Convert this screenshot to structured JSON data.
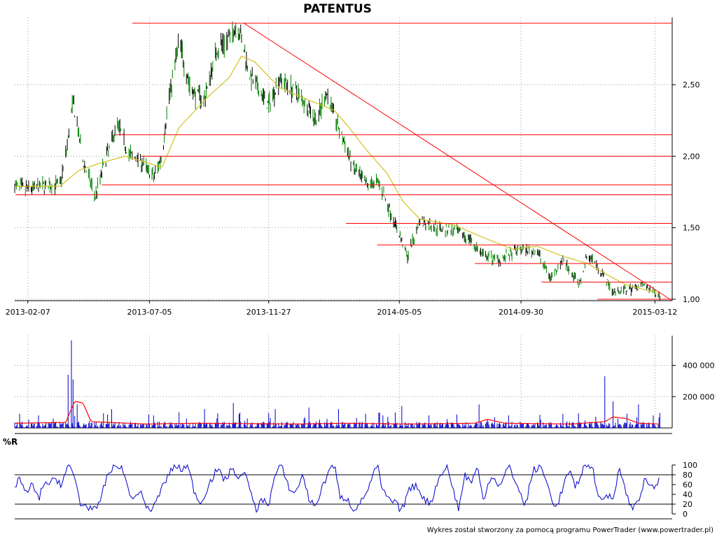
{
  "chart_data": [
    {
      "type": "line",
      "title": "PATENTUS",
      "x_tick_labels": [
        "2013-02-07",
        "2013-07-05",
        "2013-11-27",
        "2014-05-05",
        "2014-09-30",
        "2015-03-12"
      ],
      "y_tick_labels": [
        "1,00",
        "1,50",
        "2,00",
        "2,50"
      ],
      "ylim": [
        0.99,
        2.97
      ],
      "grid": true,
      "series": [
        {
          "role": "price",
          "color": "#008000",
          "date_start": "2013-01-22",
          "date_end": "2015-03-18",
          "anchors": [
            [
              "2013-01-22",
              1.79
            ],
            [
              "2013-02-07",
              1.77
            ],
            [
              "2013-02-25",
              1.79
            ],
            [
              "2013-03-18",
              1.8
            ],
            [
              "2013-03-25",
              2.0
            ],
            [
              "2013-04-03",
              2.38
            ],
            [
              "2013-04-15",
              1.97
            ],
            [
              "2013-04-30",
              1.72
            ],
            [
              "2013-05-10",
              1.93
            ],
            [
              "2013-05-27",
              2.23
            ],
            [
              "2013-06-10",
              2.01
            ],
            [
              "2013-06-24",
              1.97
            ],
            [
              "2013-07-10",
              1.85
            ],
            [
              "2013-07-20",
              2.0
            ],
            [
              "2013-07-27",
              2.35
            ],
            [
              "2013-08-10",
              2.8
            ],
            [
              "2013-08-25",
              2.45
            ],
            [
              "2013-09-10",
              2.4
            ],
            [
              "2013-09-25",
              2.75
            ],
            [
              "2013-10-10",
              2.82
            ],
            [
              "2013-10-20",
              2.93
            ],
            [
              "2013-11-05",
              2.55
            ],
            [
              "2013-11-27",
              2.35
            ],
            [
              "2013-12-10",
              2.55
            ],
            [
              "2014-01-05",
              2.42
            ],
            [
              "2014-01-25",
              2.25
            ],
            [
              "2014-02-05",
              2.45
            ],
            [
              "2014-02-20",
              2.2
            ],
            [
              "2014-03-10",
              1.92
            ],
            [
              "2014-03-25",
              1.8
            ],
            [
              "2014-04-10",
              1.82
            ],
            [
              "2014-05-05",
              1.45
            ],
            [
              "2014-05-15",
              1.3
            ],
            [
              "2014-05-30",
              1.55
            ],
            [
              "2014-06-20",
              1.5
            ],
            [
              "2014-07-10",
              1.48
            ],
            [
              "2014-07-30",
              1.42
            ],
            [
              "2014-08-15",
              1.3
            ],
            [
              "2014-09-05",
              1.28
            ],
            [
              "2014-09-30",
              1.35
            ],
            [
              "2014-10-20",
              1.33
            ],
            [
              "2014-11-05",
              1.15
            ],
            [
              "2014-11-20",
              1.28
            ],
            [
              "2014-12-10",
              1.1
            ],
            [
              "2014-12-20",
              1.32
            ],
            [
              "2015-01-05",
              1.2
            ],
            [
              "2015-01-20",
              1.05
            ],
            [
              "2015-02-10",
              1.07
            ],
            [
              "2015-02-25",
              1.1
            ],
            [
              "2015-03-18",
              1.03
            ]
          ]
        },
        {
          "role": "moving average",
          "color": "#d4c020",
          "anchors": [
            [
              "2013-01-22",
              1.79
            ],
            [
              "2013-03-18",
              1.79
            ],
            [
              "2013-04-10",
              1.9
            ],
            [
              "2013-05-05",
              1.95
            ],
            [
              "2013-06-05",
              2.0
            ],
            [
              "2013-07-05",
              1.95
            ],
            [
              "2013-07-20",
              1.92
            ],
            [
              "2013-08-10",
              2.2
            ],
            [
              "2013-09-15",
              2.42
            ],
            [
              "2013-10-10",
              2.55
            ],
            [
              "2013-10-25",
              2.7
            ],
            [
              "2013-11-10",
              2.66
            ],
            [
              "2013-12-10",
              2.48
            ],
            [
              "2014-01-20",
              2.38
            ],
            [
              "2014-02-15",
              2.32
            ],
            [
              "2014-03-05",
              2.2
            ],
            [
              "2014-03-25",
              2.05
            ],
            [
              "2014-04-20",
              1.88
            ],
            [
              "2014-05-10",
              1.68
            ],
            [
              "2014-05-30",
              1.56
            ],
            [
              "2014-07-10",
              1.52
            ],
            [
              "2014-08-20",
              1.42
            ],
            [
              "2014-09-20",
              1.35
            ],
            [
              "2014-10-20",
              1.37
            ],
            [
              "2014-11-20",
              1.3
            ],
            [
              "2014-12-20",
              1.25
            ],
            [
              "2015-01-10",
              1.18
            ],
            [
              "2015-02-05",
              1.1
            ],
            [
              "2015-03-18",
              1.04
            ]
          ]
        }
      ],
      "horizontal_lines": [
        {
          "y": 2.93,
          "from": "2013-06-14",
          "to": "2015-04-02"
        },
        {
          "y": 2.15,
          "from": "2013-05-25",
          "to": "2015-04-02"
        },
        {
          "y": 2.0,
          "from": "2013-06-25",
          "to": "2015-04-02"
        },
        {
          "y": 1.8,
          "from": "2013-05-08",
          "to": "2015-04-02"
        },
        {
          "y": 1.73,
          "from": "2013-01-23",
          "to": "2015-04-02"
        },
        {
          "y": 1.53,
          "from": "2014-03-01",
          "to": "2015-04-02"
        },
        {
          "y": 1.38,
          "from": "2014-04-08",
          "to": "2015-04-02"
        },
        {
          "y": 1.25,
          "from": "2014-08-05",
          "to": "2015-04-02"
        },
        {
          "y": 1.12,
          "from": "2014-10-25",
          "to": "2015-04-02"
        },
        {
          "y": 1.0,
          "from": "2015-01-01",
          "to": "2015-04-02"
        }
      ],
      "trend_line": {
        "from": [
          "2013-10-28",
          2.93
        ],
        "to": [
          "2015-04-02",
          0.99
        ]
      },
      "line_color": "#ff0000"
    },
    {
      "type": "bar",
      "role": "volume",
      "y_tick_labels": [
        "200 000",
        "400 000"
      ],
      "ylim": [
        0,
        590000
      ],
      "color": "#0000cc",
      "base_level": 20000,
      "spikes": [
        [
          "2013-01-28",
          90000
        ],
        [
          "2013-02-20",
          80000
        ],
        [
          "2013-03-10",
          60000
        ],
        [
          "2013-03-28",
          340000
        ],
        [
          "2013-04-01",
          560000
        ],
        [
          "2013-04-03",
          310000
        ],
        [
          "2013-04-08",
          150000
        ],
        [
          "2013-05-20",
          120000
        ],
        [
          "2013-07-10",
          80000
        ],
        [
          "2013-08-10",
          100000
        ],
        [
          "2013-09-10",
          120000
        ],
        [
          "2013-10-15",
          160000
        ],
        [
          "2013-12-05",
          120000
        ],
        [
          "2014-01-15",
          130000
        ],
        [
          "2014-02-20",
          120000
        ],
        [
          "2014-03-25",
          90000
        ],
        [
          "2014-04-15",
          80000
        ],
        [
          "2014-05-08",
          140000
        ],
        [
          "2014-06-10",
          80000
        ],
        [
          "2014-08-10",
          150000
        ],
        [
          "2014-09-15",
          80000
        ],
        [
          "2014-11-20",
          90000
        ],
        [
          "2015-01-10",
          330000
        ],
        [
          "2015-01-20",
          170000
        ],
        [
          "2015-02-20",
          150000
        ],
        [
          "2015-03-10",
          80000
        ]
      ],
      "average_line": {
        "color": "#ff0000",
        "anchors": [
          [
            "2013-01-22",
            30000
          ],
          [
            "2013-03-25",
            35000
          ],
          [
            "2013-04-05",
            170000
          ],
          [
            "2013-04-15",
            160000
          ],
          [
            "2013-04-25",
            40000
          ],
          [
            "2013-07-01",
            25000
          ],
          [
            "2013-09-01",
            30000
          ],
          [
            "2013-10-15",
            28000
          ],
          [
            "2014-01-01",
            25000
          ],
          [
            "2014-03-01",
            30000
          ],
          [
            "2014-05-15",
            25000
          ],
          [
            "2014-08-05",
            30000
          ],
          [
            "2014-08-20",
            55000
          ],
          [
            "2014-09-10",
            30000
          ],
          [
            "2014-12-01",
            25000
          ],
          [
            "2015-01-10",
            40000
          ],
          [
            "2015-01-20",
            70000
          ],
          [
            "2015-02-05",
            60000
          ],
          [
            "2015-02-20",
            30000
          ],
          [
            "2015-03-18",
            25000
          ]
        ]
      }
    },
    {
      "type": "line",
      "role": "oscillator",
      "label": "%R",
      "y_tick_labels": [
        "0",
        "20",
        "40",
        "60",
        "80",
        "100"
      ],
      "ylim": [
        0,
        100
      ],
      "reference_levels": [
        20,
        80
      ],
      "color": "#0000cc",
      "anchors": [
        [
          "2013-01-22",
          55
        ],
        [
          "2013-01-28",
          75
        ],
        [
          "2013-02-05",
          40
        ],
        [
          "2013-02-12",
          60
        ],
        [
          "2013-02-20",
          30
        ],
        [
          "2013-02-28",
          70
        ],
        [
          "2013-03-05",
          55
        ],
        [
          "2013-03-12",
          75
        ],
        [
          "2013-03-20",
          60
        ],
        [
          "2013-03-28",
          100
        ],
        [
          "2013-04-05",
          75
        ],
        [
          "2013-04-12",
          20
        ],
        [
          "2013-04-22",
          15
        ],
        [
          "2013-05-02",
          5
        ],
        [
          "2013-05-08",
          40
        ],
        [
          "2013-05-15",
          80
        ],
        [
          "2013-05-22",
          95
        ],
        [
          "2013-05-30",
          100
        ],
        [
          "2013-06-08",
          60
        ],
        [
          "2013-06-15",
          25
        ],
        [
          "2013-06-22",
          50
        ],
        [
          "2013-06-30",
          20
        ],
        [
          "2013-07-08",
          5
        ],
        [
          "2013-07-18",
          45
        ],
        [
          "2013-07-28",
          80
        ],
        [
          "2013-08-05",
          100
        ],
        [
          "2013-08-12",
          90
        ],
        [
          "2013-08-20",
          100
        ],
        [
          "2013-08-28",
          50
        ],
        [
          "2013-09-05",
          20
        ],
        [
          "2013-09-15",
          60
        ],
        [
          "2013-09-25",
          90
        ],
        [
          "2013-10-05",
          70
        ],
        [
          "2013-10-15",
          95
        ],
        [
          "2013-10-22",
          65
        ],
        [
          "2013-10-28",
          95
        ],
        [
          "2013-11-05",
          40
        ],
        [
          "2013-11-12",
          10
        ],
        [
          "2013-11-20",
          30
        ],
        [
          "2013-11-27",
          20
        ],
        [
          "2013-12-05",
          80
        ],
        [
          "2013-12-12",
          100
        ],
        [
          "2013-12-20",
          60
        ],
        [
          "2013-12-28",
          40
        ],
        [
          "2014-01-08",
          80
        ],
        [
          "2014-01-15",
          30
        ],
        [
          "2014-01-22",
          15
        ],
        [
          "2014-02-01",
          55
        ],
        [
          "2014-02-08",
          90
        ],
        [
          "2014-02-15",
          100
        ],
        [
          "2014-02-22",
          30
        ],
        [
          "2014-03-01",
          35
        ],
        [
          "2014-03-10",
          10
        ],
        [
          "2014-03-20",
          25
        ],
        [
          "2014-03-30",
          60
        ],
        [
          "2014-04-08",
          100
        ],
        [
          "2014-04-15",
          45
        ],
        [
          "2014-04-22",
          30
        ],
        [
          "2014-05-01",
          20
        ],
        [
          "2014-05-08",
          5
        ],
        [
          "2014-05-15",
          45
        ],
        [
          "2014-05-25",
          60
        ],
        [
          "2014-06-05",
          30
        ],
        [
          "2014-06-12",
          20
        ],
        [
          "2014-06-20",
          65
        ],
        [
          "2014-07-01",
          100
        ],
        [
          "2014-07-08",
          60
        ],
        [
          "2014-07-16",
          10
        ],
        [
          "2014-07-24",
          80
        ],
        [
          "2014-08-01",
          65
        ],
        [
          "2014-08-08",
          95
        ],
        [
          "2014-08-15",
          30
        ],
        [
          "2014-08-25",
          80
        ],
        [
          "2014-09-05",
          55
        ],
        [
          "2014-09-15",
          100
        ],
        [
          "2014-09-25",
          60
        ],
        [
          "2014-10-05",
          15
        ],
        [
          "2014-10-15",
          90
        ],
        [
          "2014-10-25",
          95
        ],
        [
          "2014-11-05",
          40
        ],
        [
          "2014-11-12",
          10
        ],
        [
          "2014-11-20",
          55
        ],
        [
          "2014-11-28",
          90
        ],
        [
          "2014-12-05",
          50
        ],
        [
          "2014-12-15",
          95
        ],
        [
          "2014-12-25",
          100
        ],
        [
          "2015-01-05",
          20
        ],
        [
          "2015-01-12",
          40
        ],
        [
          "2015-01-20",
          30
        ],
        [
          "2015-01-28",
          100
        ],
        [
          "2015-02-05",
          40
        ],
        [
          "2015-02-12",
          10
        ],
        [
          "2015-02-20",
          30
        ],
        [
          "2015-02-28",
          70
        ],
        [
          "2015-03-08",
          50
        ],
        [
          "2015-03-18",
          72
        ]
      ]
    }
  ],
  "footer_text": "Wykres został stworzony za pomocą programu PowerTrader (www.powertrader.pl)"
}
